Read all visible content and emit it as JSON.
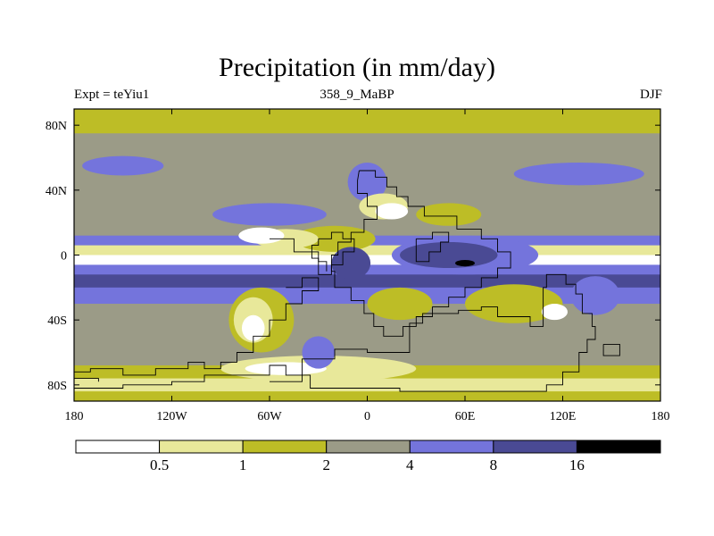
{
  "chart_data": {
    "type": "heatmap",
    "title": "Precipitation (in mm/day)",
    "subtitle_left": "Expt = teYiu1",
    "subtitle_center": "358_9_MaBP",
    "subtitle_right": "DJF",
    "x_ticks": [
      "180",
      "120W",
      "60W",
      "0",
      "60E",
      "120E",
      "180"
    ],
    "y_ticks": [
      "80N",
      "40N",
      "0",
      "40S",
      "80S"
    ],
    "xlim": [
      -180,
      180
    ],
    "ylim": [
      -90,
      90
    ],
    "x_tick_values": [
      -180,
      -120,
      -60,
      0,
      60,
      120,
      180
    ],
    "y_tick_values": [
      80,
      40,
      0,
      -40,
      -80
    ],
    "colorbar": {
      "labels": [
        "0.5",
        "1",
        "2",
        "4",
        "8",
        "16"
      ],
      "colors": [
        "#ffffff",
        "#e8e89a",
        "#bdbd26",
        "#9b9b87",
        "#7474dc",
        "#4a4a94",
        "#000000"
      ]
    },
    "bands_lat": [
      {
        "lat": [
          90,
          75
        ],
        "level": 2
      },
      {
        "lat": [
          75,
          60
        ],
        "level": 3
      },
      {
        "lat": [
          60,
          45
        ],
        "level": 3
      },
      {
        "lat": [
          45,
          30
        ],
        "level": 3
      },
      {
        "lat": [
          30,
          12
        ],
        "level": 3
      },
      {
        "lat": [
          12,
          6
        ],
        "level": 4
      },
      {
        "lat": [
          6,
          0
        ],
        "level": 1
      },
      {
        "lat": [
          0,
          -6
        ],
        "level": 0
      },
      {
        "lat": [
          -6,
          -12
        ],
        "level": 4
      },
      {
        "lat": [
          -12,
          -20
        ],
        "level": 5
      },
      {
        "lat": [
          -20,
          -30
        ],
        "level": 4
      },
      {
        "lat": [
          -30,
          -68
        ],
        "level": 3
      },
      {
        "lat": [
          -68,
          -76
        ],
        "level": 2
      },
      {
        "lat": [
          -76,
          -84
        ],
        "level": 1
      },
      {
        "lat": [
          -84,
          -90
        ],
        "level": 2
      }
    ],
    "blobs": [
      {
        "lon": -60,
        "lat": 25,
        "rlon": 35,
        "rlat": 7,
        "level": 4
      },
      {
        "lon": -150,
        "lat": 55,
        "rlon": 25,
        "rlat": 6,
        "level": 4
      },
      {
        "lon": 130,
        "lat": 50,
        "rlon": 40,
        "rlat": 7,
        "level": 4
      },
      {
        "lon": 0,
        "lat": 45,
        "rlon": 12,
        "rlat": 12,
        "level": 4
      },
      {
        "lon": -20,
        "lat": 10,
        "rlon": 25,
        "rlat": 8,
        "level": 2
      },
      {
        "lon": -50,
        "lat": 10,
        "rlon": 20,
        "rlat": 6,
        "level": 1
      },
      {
        "lon": -65,
        "lat": 12,
        "rlon": 14,
        "rlat": 5,
        "level": 0
      },
      {
        "lon": 10,
        "lat": 30,
        "rlon": 15,
        "rlat": 8,
        "level": 1
      },
      {
        "lon": 15,
        "lat": 27,
        "rlon": 10,
        "rlat": 5,
        "level": 0
      },
      {
        "lon": 50,
        "lat": 25,
        "rlon": 20,
        "rlat": 7,
        "level": 2
      },
      {
        "lon": 60,
        "lat": 0,
        "rlon": 45,
        "rlat": 12,
        "level": 4
      },
      {
        "lon": 50,
        "lat": 0,
        "rlon": 30,
        "rlat": 8,
        "level": 5
      },
      {
        "lon": 60,
        "lat": -5,
        "rlon": 6,
        "rlat": 2,
        "level": 6
      },
      {
        "lon": -10,
        "lat": -5,
        "rlon": 12,
        "rlat": 10,
        "level": 5
      },
      {
        "lon": -65,
        "lat": -40,
        "rlon": 20,
        "rlat": 20,
        "level": 2
      },
      {
        "lon": -70,
        "lat": -40,
        "rlon": 12,
        "rlat": 14,
        "level": 1
      },
      {
        "lon": -70,
        "lat": -45,
        "rlon": 7,
        "rlat": 8,
        "level": 0
      },
      {
        "lon": -30,
        "lat": -70,
        "rlon": 60,
        "rlat": 8,
        "level": 1
      },
      {
        "lon": -50,
        "lat": -70,
        "rlon": 25,
        "rlat": 4,
        "level": 0
      },
      {
        "lon": 20,
        "lat": -30,
        "rlon": 20,
        "rlat": 10,
        "level": 2
      },
      {
        "lon": 90,
        "lat": -30,
        "rlon": 30,
        "rlat": 12,
        "level": 2
      },
      {
        "lon": 115,
        "lat": -35,
        "rlon": 8,
        "rlat": 5,
        "level": 0
      },
      {
        "lon": 140,
        "lat": -25,
        "rlon": 15,
        "rlat": 12,
        "level": 4
      },
      {
        "lon": -30,
        "lat": -60,
        "rlon": 10,
        "rlat": 10,
        "level": 4
      }
    ]
  }
}
